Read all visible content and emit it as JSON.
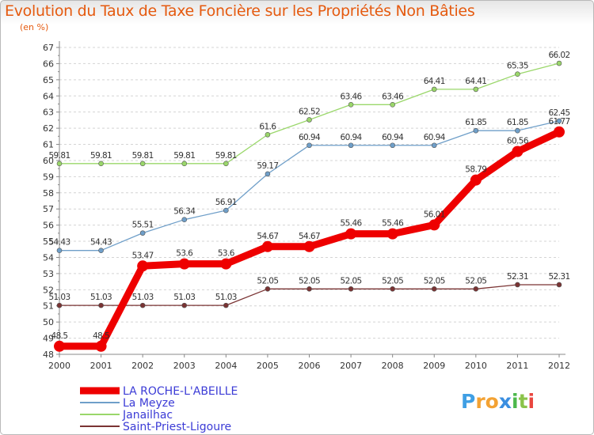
{
  "title": "Evolution du Taux de Taxe Foncière sur les Propriétés Non Bâties",
  "subtitle": "(en %)",
  "logo": {
    "letters": [
      "P",
      "r",
      "o",
      "x",
      "i",
      "t",
      "i"
    ],
    "colors": [
      "#3f9fe4",
      "#f3a233",
      "#f3a233",
      "#3a8ee0",
      "#4cb84c",
      "#8bc34a",
      "#e9463f"
    ]
  },
  "chart_data": {
    "type": "line",
    "x": [
      "2000",
      "2001",
      "2002",
      "2003",
      "2004",
      "2005",
      "2006",
      "2007",
      "2008",
      "2009",
      "2010",
      "2011",
      "2012"
    ],
    "ylim": [
      48,
      67
    ],
    "yticks": [
      48,
      49,
      50,
      51,
      52,
      53,
      54,
      55,
      56,
      57,
      58,
      59,
      60,
      61,
      62,
      63,
      64,
      65,
      66,
      67
    ],
    "grid": "horizontal dashed",
    "legend_placement": "bottom",
    "series": [
      {
        "name": "LA ROCHE-L'ABEILLE",
        "color": "#ee0000",
        "width": 9,
        "marker": 7,
        "values": [
          48.5,
          48.5,
          53.47,
          53.6,
          53.6,
          54.67,
          54.67,
          55.46,
          55.46,
          56.01,
          58.79,
          60.56,
          61.77
        ],
        "labels": [
          "48.5",
          "48.5",
          "53.47",
          "53.6",
          "53.6",
          "54.67",
          "54.67",
          "55.46",
          "55.46",
          "56.01",
          "58.79",
          "60.56",
          "61.77"
        ]
      },
      {
        "name": "La Meyze",
        "color": "#6f9fc9",
        "width": 1.3,
        "marker": 3,
        "values": [
          54.43,
          54.43,
          55.51,
          56.34,
          56.91,
          59.17,
          60.94,
          60.94,
          60.94,
          60.94,
          61.85,
          61.85,
          62.45
        ],
        "labels": [
          "54.43",
          "54.43",
          "55.51",
          "56.34",
          "56.91",
          "59.17",
          "60.94",
          "60.94",
          "60.94",
          "60.94",
          "61.85",
          "61.85",
          "62.45"
        ]
      },
      {
        "name": "Janailhac",
        "color": "#9ad76a",
        "width": 1.3,
        "marker": 3,
        "values": [
          59.81,
          59.81,
          59.81,
          59.81,
          59.81,
          61.6,
          62.52,
          63.46,
          63.46,
          64.41,
          64.41,
          65.35,
          66.02
        ],
        "labels": [
          "59.81",
          "59.81",
          "59.81",
          "59.81",
          "59.81",
          "61.6",
          "62.52",
          "63.46",
          "63.46",
          "64.41",
          "64.41",
          "65.35",
          "66.02"
        ]
      },
      {
        "name": "Saint-Priest-Ligoure",
        "color": "#7a3333",
        "width": 1.3,
        "marker": 3,
        "values": [
          51.03,
          51.03,
          51.03,
          51.03,
          51.03,
          52.05,
          52.05,
          52.05,
          52.05,
          52.05,
          52.05,
          52.31,
          52.31
        ],
        "labels": [
          "51.03",
          "51.03",
          "51.03",
          "51.03",
          "51.03",
          "52.05",
          "52.05",
          "52.05",
          "52.05",
          "52.05",
          "52.05",
          "52.31",
          "52.31"
        ]
      }
    ]
  }
}
